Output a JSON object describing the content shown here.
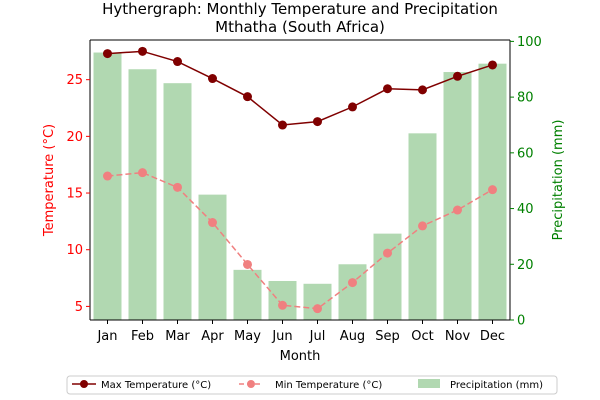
{
  "chart_data": {
    "type": "bar+line",
    "title": "Hythergraph: Monthly Temperature and Precipitation",
    "subtitle": "Mthatha (South Africa)",
    "xlabel": "Month",
    "ylabel_left": "Temperature (°C)",
    "ylabel_right": "Precipitation (mm)",
    "categories": [
      "Jan",
      "Feb",
      "Mar",
      "Apr",
      "May",
      "Jun",
      "Jul",
      "Aug",
      "Sep",
      "Oct",
      "Nov",
      "Dec"
    ],
    "y_left_lim": [
      3.8,
      28.5
    ],
    "y_left_ticks": [
      5,
      10,
      15,
      20,
      25
    ],
    "y_right_lim": [
      0,
      100.5
    ],
    "y_right_ticks": [
      0,
      20,
      40,
      60,
      80,
      100
    ],
    "grid": false,
    "legend_position": "bottom",
    "series": [
      {
        "name": "Max Temperature (°C)",
        "kind": "line",
        "axis": "left",
        "color": "#800000",
        "values": [
          27.3,
          27.5,
          26.6,
          25.1,
          23.5,
          21.0,
          21.3,
          22.6,
          24.2,
          24.1,
          25.3,
          26.3
        ]
      },
      {
        "name": "Min Temperature (°C)",
        "kind": "line",
        "axis": "left",
        "color": "#f08080",
        "style": "dashed",
        "values": [
          16.5,
          16.8,
          15.5,
          12.4,
          8.7,
          5.1,
          4.8,
          7.1,
          9.7,
          12.1,
          13.5,
          15.3
        ]
      },
      {
        "name": "Precipitation (mm)",
        "kind": "bar",
        "axis": "right",
        "color": "#b1d8b1",
        "values": [
          96,
          90,
          85,
          45,
          18,
          14,
          13,
          20,
          31,
          67,
          89,
          92
        ]
      }
    ],
    "colors": {
      "left_axis": "#ff0000",
      "right_axis": "#008000"
    }
  }
}
